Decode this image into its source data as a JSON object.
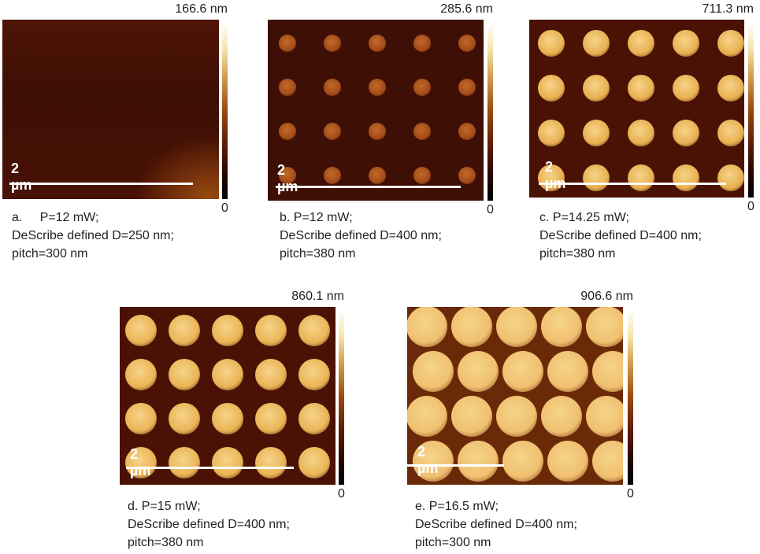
{
  "panels": [
    {
      "id": "a",
      "max_label": "166.6 nm",
      "min_label": "0",
      "scale_label": "2 µm",
      "caption": [
        "a.     P=12 mW;",
        "DeScribe defined D=250 nm;",
        "pitch=300 nm"
      ]
    },
    {
      "id": "b",
      "max_label": "285.6 nm",
      "min_label": "0",
      "scale_label": "2 µm",
      "caption": [
        "b. P=12 mW;",
        "DeScribe defined D=400 nm;",
        "pitch=380 nm"
      ]
    },
    {
      "id": "c",
      "max_label": "711.3 nm",
      "min_label": "0",
      "scale_label": "2 µm",
      "caption": [
        "c. P=14.25 mW;",
        "DeScribe defined D=400 nm;",
        "pitch=380 nm"
      ]
    },
    {
      "id": "d",
      "max_label": "860.1 nm",
      "min_label": "0",
      "scale_label": "2 µm",
      "caption": [
        "d. P=15 mW;",
        "DeScribe defined D=400 nm;",
        "pitch=380 nm"
      ]
    },
    {
      "id": "e",
      "max_label": "906.6 nm",
      "min_label": "0",
      "scale_label": "2 µm",
      "caption": [
        "e. P=16.5 mW;",
        "DeScribe defined D=400 nm;",
        "pitch=300 nm"
      ]
    }
  ],
  "colormap": [
    "#000000",
    "#5a1a05",
    "#9a4a10",
    "#d6a050",
    "#ffffff"
  ]
}
